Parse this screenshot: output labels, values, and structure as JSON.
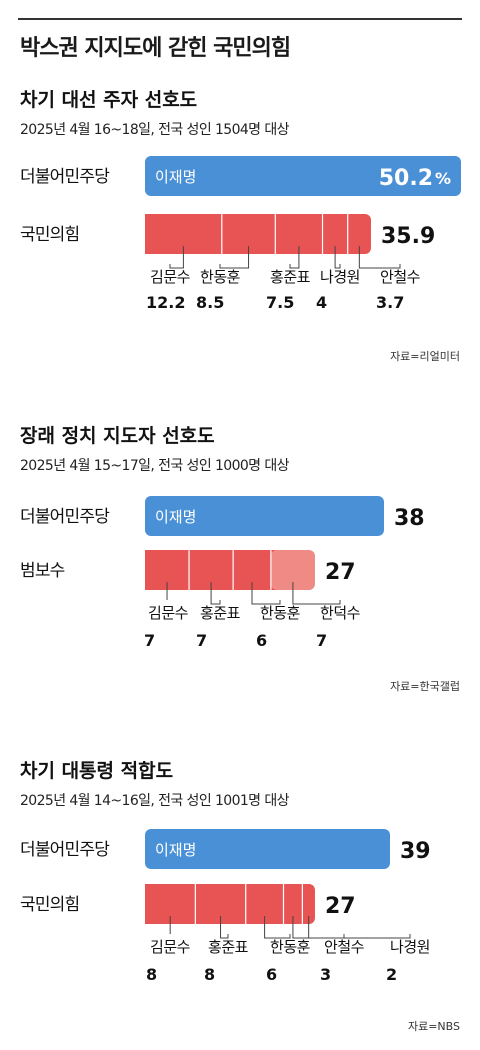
{
  "title": "박스권 지지도에 갇힌 국민의힘",
  "colors": {
    "blue": "#4a90d6",
    "red": "#e85454",
    "pink": "#f08a85",
    "leader": "#444444"
  },
  "chart_data": [
    {
      "type": "bar",
      "title": "차기 대선 주자 선호도",
      "subtitle": "2025년 4월 16~18일, 전국 성인 1504명 대상",
      "source": "자료=리얼미터",
      "xlim": [
        0,
        50.2
      ],
      "parties": [
        {
          "name": "더불어민주당",
          "total": "50.2",
          "unit": "%",
          "segments": [
            {
              "name": "이재명",
              "value": 50.2
            }
          ]
        },
        {
          "name": "국민의힘",
          "total": "35.9",
          "unit": "",
          "segments": [
            {
              "name": "김문수",
              "value": 12.2,
              "label": "12.2"
            },
            {
              "name": "한동훈",
              "value": 8.5,
              "label": "8.5"
            },
            {
              "name": "홍준표",
              "value": 7.5,
              "label": "7.5"
            },
            {
              "name": "나경원",
              "value": 4,
              "label": "4"
            },
            {
              "name": "안철수",
              "value": 3.7,
              "label": "3.7"
            }
          ]
        }
      ]
    },
    {
      "type": "bar",
      "title": "장래 정치 지도자 선호도",
      "subtitle": "2025년 4월 15~17일, 전국 성인 1000명 대상",
      "source": "자료=한국갤럽",
      "xlim": [
        0,
        50.2
      ],
      "parties": [
        {
          "name": "더불어민주당",
          "total": "38",
          "unit": "",
          "segments": [
            {
              "name": "이재명",
              "value": 38
            }
          ]
        },
        {
          "name": "범보수",
          "total": "27",
          "unit": "",
          "segments": [
            {
              "name": "김문수",
              "value": 7,
              "label": "7"
            },
            {
              "name": "홍준표",
              "value": 7,
              "label": "7"
            },
            {
              "name": "한동훈",
              "value": 6,
              "label": "6"
            },
            {
              "name": "한덕수",
              "value": 7,
              "label": "7",
              "light": true
            }
          ]
        }
      ]
    },
    {
      "type": "bar",
      "title": "차기 대통령 적합도",
      "subtitle": "2025년 4월 14~16일, 전국 성인 1001명 대상",
      "source": "자료=NBS",
      "xlim": [
        0,
        50.2
      ],
      "parties": [
        {
          "name": "더불어민주당",
          "total": "39",
          "unit": "",
          "segments": [
            {
              "name": "이재명",
              "value": 39
            }
          ]
        },
        {
          "name": "국민의힘",
          "total": "27",
          "unit": "",
          "segments": [
            {
              "name": "김문수",
              "value": 8,
              "label": "8"
            },
            {
              "name": "홍준표",
              "value": 8,
              "label": "8"
            },
            {
              "name": "한동훈",
              "value": 6,
              "label": "6"
            },
            {
              "name": "안철수",
              "value": 3,
              "label": "3"
            },
            {
              "name": "나경원",
              "value": 2,
              "label": "2"
            }
          ]
        }
      ]
    }
  ]
}
